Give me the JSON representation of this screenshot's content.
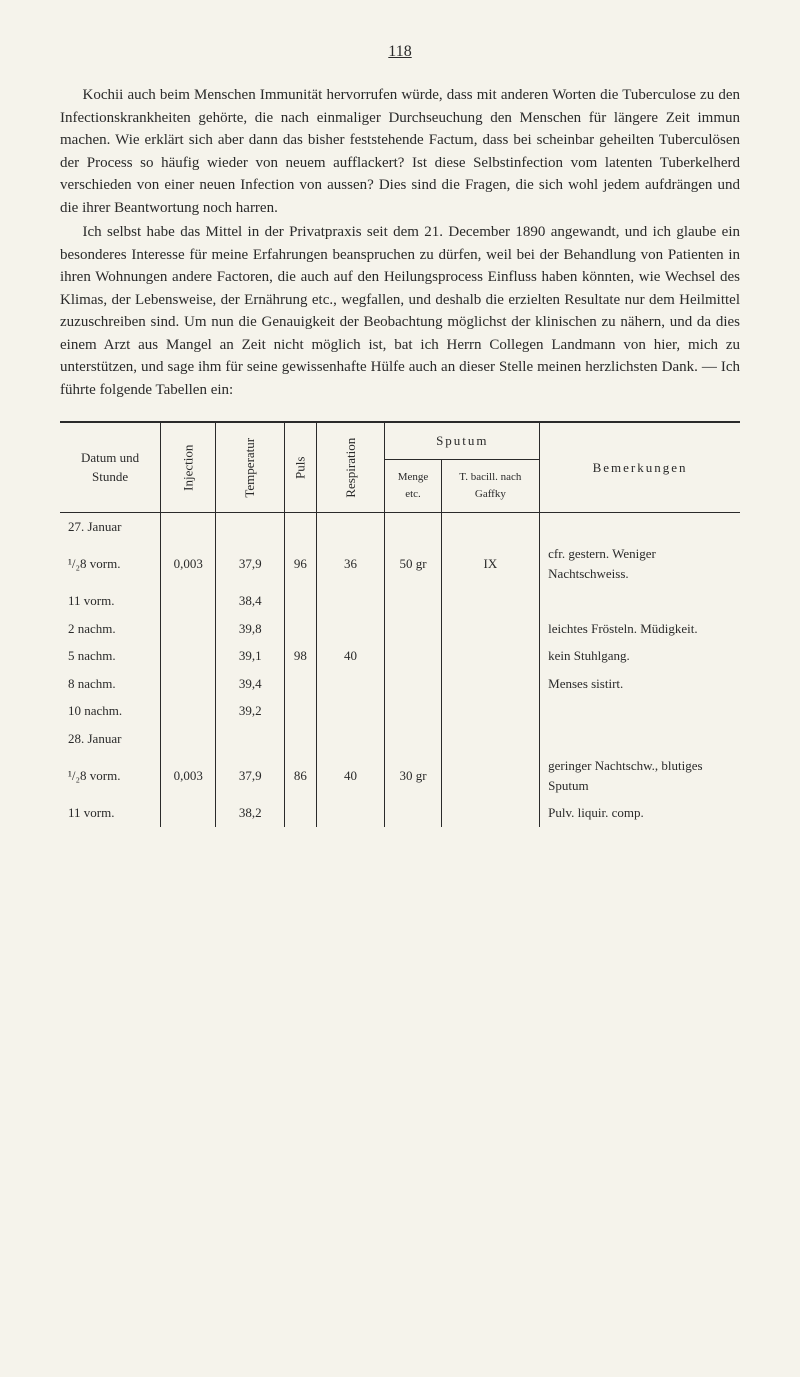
{
  "page_number": "118",
  "paragraphs": [
    "Kochii auch beim Menschen Immunität hervorrufen würde, dass mit anderen Worten die Tuberculose zu den Infectionskrankheiten gehörte, die nach einmaliger Durchseuchung den Menschen für längere Zeit immun machen. Wie erklärt sich aber dann das bisher feststehende Factum, dass bei scheinbar geheilten Tuberculösen der Process so häufig wieder von neuem aufflackert? Ist diese Selbstinfection vom latenten Tuberkelherd verschieden von einer neuen Infection von aussen? Dies sind die Fragen, die sich wohl jedem aufdrängen und die ihrer Beantwortung noch harren.",
    "Ich selbst habe das Mittel in der Privatpraxis seit dem 21. December 1890 angewandt, und ich glaube ein besonderes Interesse für meine Erfahrungen beanspruchen zu dürfen, weil bei der Behandlung von Patienten in ihren Wohnungen andere Factoren, die auch auf den Heilungsprocess Einfluss haben könnten, wie Wechsel des Klimas, der Lebensweise, der Ernährung etc., wegfallen, und deshalb die erzielten Resultate nur dem Heilmittel zuzuschreiben sind. Um nun die Genauigkeit der Beobachtung möglichst der klinischen zu nähern, und da dies einem Arzt aus Mangel an Zeit nicht möglich ist, bat ich Herrn Collegen Landmann von hier, mich zu unterstützen, und sage ihm für seine gewissenhafte Hülfe auch an dieser Stelle meinen herzlichsten Dank. — Ich führte folgende Tabellen ein:"
  ],
  "table": {
    "headers": {
      "col1": "Datum und Stunde",
      "col2": "Injection",
      "col3": "Temperatur",
      "col4": "Puls",
      "col5": "Respiration",
      "col6_group": "Sputum",
      "col6a": "Menge etc.",
      "col6b": "T. bacill. nach Gaffky",
      "col7": "Bemerkungen"
    },
    "rows": [
      {
        "c1": "27. Januar",
        "c2": "",
        "c3": "",
        "c4": "",
        "c5": "",
        "c6a": "",
        "c6b": "",
        "c7": ""
      },
      {
        "c1": "¹/₂8 vorm.",
        "c2": "0,003",
        "c3": "37,9",
        "c4": "96",
        "c5": "36",
        "c6a": "50 gr",
        "c6b": "IX",
        "c7": "cfr. gestern. Weniger Nachtschweiss."
      },
      {
        "c1": "11 vorm.",
        "c2": "",
        "c3": "38,4",
        "c4": "",
        "c5": "",
        "c6a": "",
        "c6b": "",
        "c7": ""
      },
      {
        "c1": "2 nachm.",
        "c2": "",
        "c3": "39,8",
        "c4": "",
        "c5": "",
        "c6a": "",
        "c6b": "",
        "c7": "leichtes Frösteln. Müdigkeit."
      },
      {
        "c1": "5 nachm.",
        "c2": "",
        "c3": "39,1",
        "c4": "98",
        "c5": "40",
        "c6a": "",
        "c6b": "",
        "c7": "kein Stuhlgang."
      },
      {
        "c1": "8 nachm.",
        "c2": "",
        "c3": "39,4",
        "c4": "",
        "c5": "",
        "c6a": "",
        "c6b": "",
        "c7": "Menses sistirt."
      },
      {
        "c1": "10 nachm.",
        "c2": "",
        "c3": "39,2",
        "c4": "",
        "c5": "",
        "c6a": "",
        "c6b": "",
        "c7": ""
      },
      {
        "c1": "28. Januar",
        "c2": "",
        "c3": "",
        "c4": "",
        "c5": "",
        "c6a": "",
        "c6b": "",
        "c7": ""
      },
      {
        "c1": "¹/₂8 vorm.",
        "c2": "0,003",
        "c3": "37,9",
        "c4": "86",
        "c5": "40",
        "c6a": "30 gr",
        "c6b": "",
        "c7": "geringer Nachtschw., blutiges Sputum"
      },
      {
        "c1": "11 vorm.",
        "c2": "",
        "c3": "38,2",
        "c4": "",
        "c5": "",
        "c6a": "",
        "c6b": "",
        "c7": "Pulv. liquir. comp."
      }
    ]
  },
  "styling": {
    "background_color": "#f5f3eb",
    "text_color": "#2a2a2a",
    "font_family": "Georgia, Times New Roman, serif",
    "body_font_size": 15,
    "table_font_size": 13
  }
}
